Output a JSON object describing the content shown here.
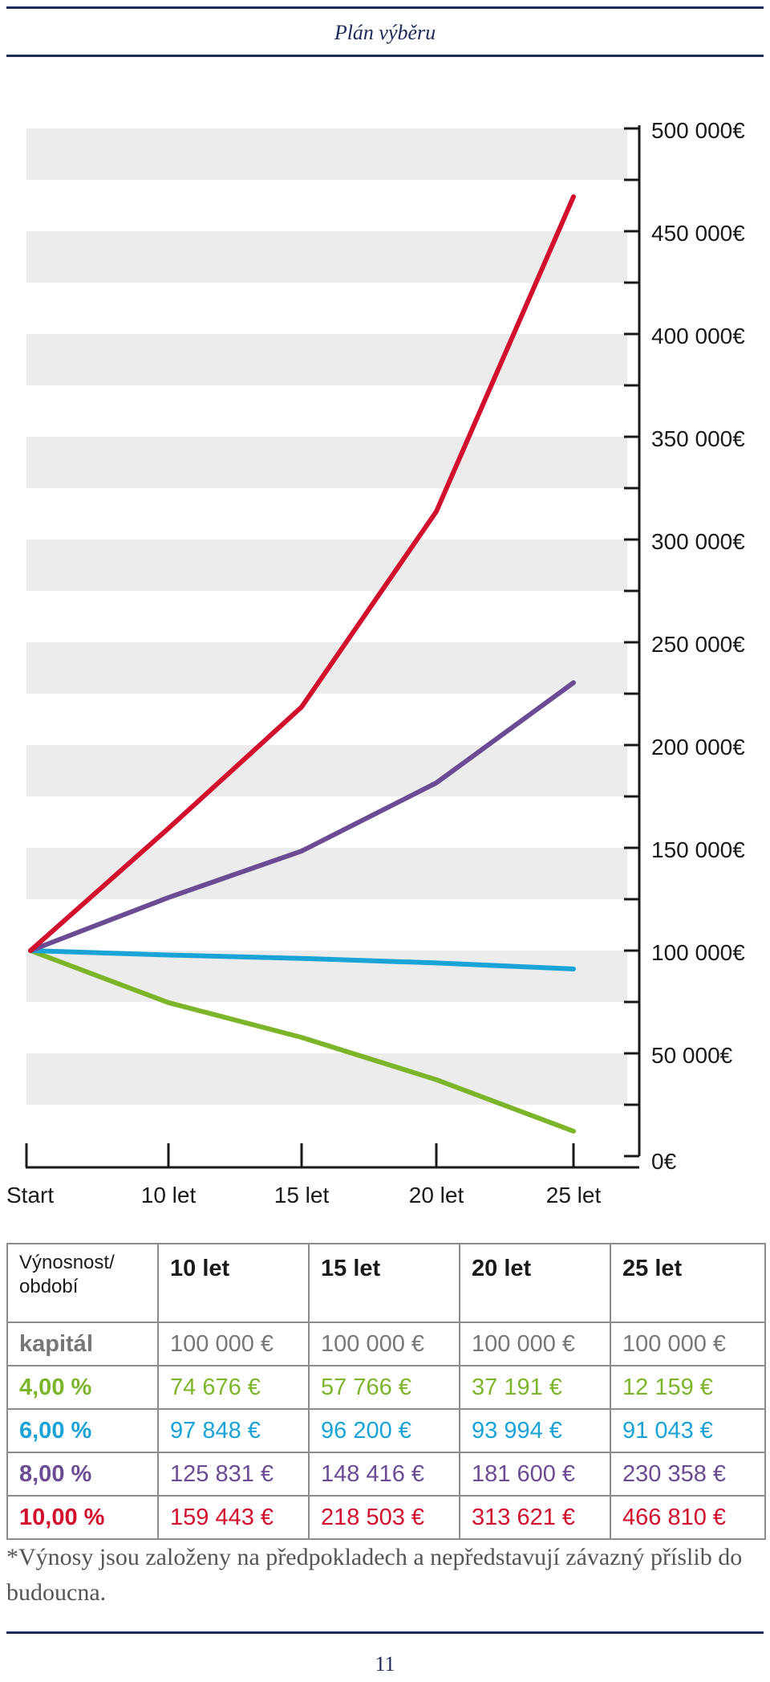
{
  "header": {
    "title": "Plán výběru"
  },
  "chart_data": {
    "type": "line",
    "x": [
      "Start",
      "10 let",
      "15 let",
      "20 let",
      "25 let"
    ],
    "y_tick_labels": [
      "0€",
      "50 000€",
      "100 000€",
      "150 000€",
      "200 000€",
      "250 000€",
      "300 000€",
      "350 000€",
      "400 000€",
      "450 000€",
      "500 000€"
    ],
    "ylim": [
      0,
      500000
    ],
    "yaxis_position": "right",
    "grid": "alternating horizontal bands",
    "series": [
      {
        "color": "#7db52a",
        "values": [
          100000,
          74676,
          57766,
          37191,
          12159
        ]
      },
      {
        "color": "#1aa3d6",
        "values": [
          100000,
          97848,
          96200,
          93994,
          91043
        ]
      },
      {
        "color": "#6b4b94",
        "values": [
          100000,
          125831,
          148416,
          181600,
          230358
        ]
      },
      {
        "color": "#d2102e",
        "values": [
          100000,
          159443,
          218503,
          313621,
          466810
        ]
      }
    ]
  },
  "table": {
    "header": [
      "Výnosnost/ období",
      "10 let",
      "15 let",
      "20 let",
      "25 let"
    ],
    "rows": [
      {
        "label": "kapitál",
        "color": "#777777",
        "values": [
          "100 000 €",
          "100 000 €",
          "100 000 €",
          "100 000 €"
        ]
      },
      {
        "label": "4,00 %",
        "color": "#7db52a",
        "values": [
          "74 676 €",
          "57 766 €",
          "37 191 €",
          "12 159 €"
        ]
      },
      {
        "label": "6,00 %",
        "color": "#1aa3d6",
        "values": [
          "97 848 €",
          "96 200 €",
          "93 994 €",
          "91 043 €"
        ]
      },
      {
        "label": "8,00 %",
        "color": "#6b4b94",
        "values": [
          "125 831 €",
          "148 416 €",
          "181 600 €",
          "230 358 €"
        ]
      },
      {
        "label": "10,00 %",
        "color": "#d2102e",
        "values": [
          "159 443 €",
          "218 503 €",
          "313 621 €",
          "466 810 €"
        ]
      }
    ]
  },
  "footnote": "*Výnosy jsou založeny na předpokladech a nepředstavují závazný příslib do budoucna.",
  "page_number": "11"
}
